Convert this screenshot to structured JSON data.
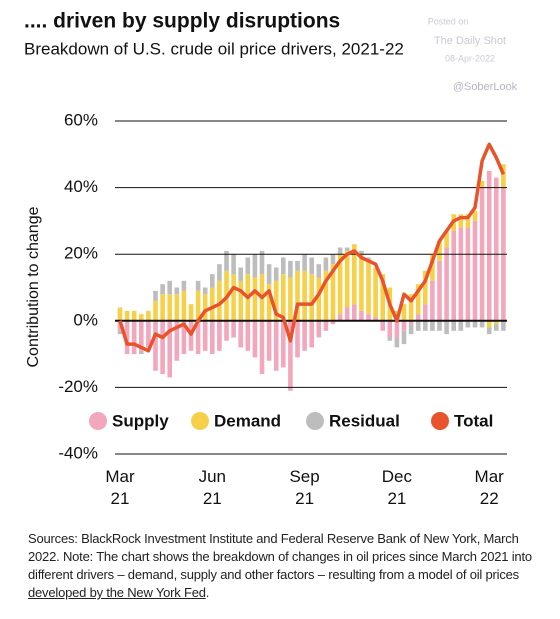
{
  "chart_data": {
    "type": "bar",
    "title": ".... driven by supply disruptions",
    "subtitle": "Breakdown of U.S. crude oil price drivers, 2021-22",
    "watermark": [
      "Posted on",
      "The Daily Shot",
      "08-Apr-2022",
      "@SoberLook"
    ],
    "y_label": "Contribution to change",
    "stacked": true,
    "categories": [
      "Mar\n21",
      null,
      null,
      null,
      null,
      null,
      null,
      null,
      null,
      null,
      null,
      null,
      null,
      "Jun\n21",
      null,
      null,
      null,
      null,
      null,
      null,
      null,
      null,
      null,
      null,
      null,
      null,
      "Sep\n21",
      null,
      null,
      null,
      null,
      null,
      null,
      null,
      null,
      null,
      null,
      null,
      null,
      "Dec\n21",
      null,
      null,
      null,
      null,
      null,
      null,
      null,
      null,
      null,
      null,
      null,
      null,
      "Mar\n22",
      null,
      null
    ],
    "ylim": [
      -40,
      60
    ],
    "yticks": [
      {
        "value": -40,
        "label": "-40%"
      },
      {
        "value": -20,
        "label": "-20%"
      },
      {
        "value": 0,
        "label": "0%"
      },
      {
        "value": 20,
        "label": "20%"
      },
      {
        "value": 40,
        "label": "40%"
      },
      {
        "value": 60,
        "label": "60%"
      }
    ],
    "grid": true,
    "series": [
      {
        "name": "Supply",
        "color": "#f2a7bd",
        "values": [
          -3,
          -10,
          -10,
          -9,
          -8,
          -15,
          -16,
          -17,
          -12,
          -10,
          -9,
          -10,
          -9,
          -10,
          -9,
          -6,
          -5,
          -8,
          -9,
          -11,
          -16,
          -12,
          -15,
          -14,
          -21,
          -11,
          -9,
          -8,
          -5,
          -3,
          -1,
          2,
          4,
          5,
          3,
          2,
          1,
          -3,
          -5,
          -5,
          -3,
          -1,
          2,
          5,
          12,
          18,
          22,
          27,
          28,
          28,
          30,
          40,
          45,
          43,
          40
        ]
      },
      {
        "name": "Demand",
        "color": "#f7d04a",
        "values": [
          4,
          3,
          3,
          2,
          3,
          6,
          8,
          8,
          8,
          9,
          5,
          9,
          8,
          10,
          12,
          15,
          14,
          12,
          14,
          13,
          14,
          11,
          12,
          14,
          13,
          15,
          15,
          14,
          13,
          15,
          17,
          18,
          17,
          18,
          17,
          16,
          15,
          14,
          10,
          3,
          5,
          8,
          9,
          10,
          8,
          6,
          5,
          5,
          4,
          4,
          3,
          2,
          -2,
          -1,
          7
        ]
      },
      {
        "name": "Residual",
        "color": "#bdbdbd",
        "values": [
          -1,
          0,
          0,
          -1,
          0,
          3,
          3,
          4,
          2,
          3,
          0,
          3,
          2,
          4,
          5,
          6,
          6,
          4,
          5,
          7,
          7,
          6,
          4,
          5,
          5,
          3,
          5,
          5,
          4,
          4,
          3,
          2,
          1,
          0,
          1,
          1,
          0,
          0,
          -1,
          -3,
          -4,
          -3,
          -3,
          -3,
          -3,
          -3,
          -4,
          -3,
          -3,
          -2,
          -2,
          -2,
          -2,
          -2,
          -3
        ]
      },
      {
        "name": "Total",
        "color": "#e8532b",
        "type": "line",
        "values": [
          0,
          -7,
          -7,
          -8,
          -9,
          -4,
          -5,
          -3,
          -2,
          -1,
          -4,
          0,
          3,
          4,
          5,
          7,
          10,
          9,
          7,
          9,
          7,
          9,
          2,
          1,
          -6,
          5,
          5,
          5,
          8,
          12,
          15,
          18,
          20,
          21,
          19,
          18,
          17,
          12,
          5,
          0,
          8,
          6,
          9,
          12,
          18,
          24,
          27,
          30,
          31,
          31,
          34,
          48,
          53,
          49,
          44
        ]
      }
    ],
    "source": [
      "Sources: BlackRock Investment Institute and Federal Reserve Bank of New York, March 2022. Note: The chart shows the breakdown of changes in oil prices since March 2021 into different drivers – demand, supply and other factors – resulting from a model of oil prices ",
      "developed by the New York Fed",
      "."
    ]
  }
}
